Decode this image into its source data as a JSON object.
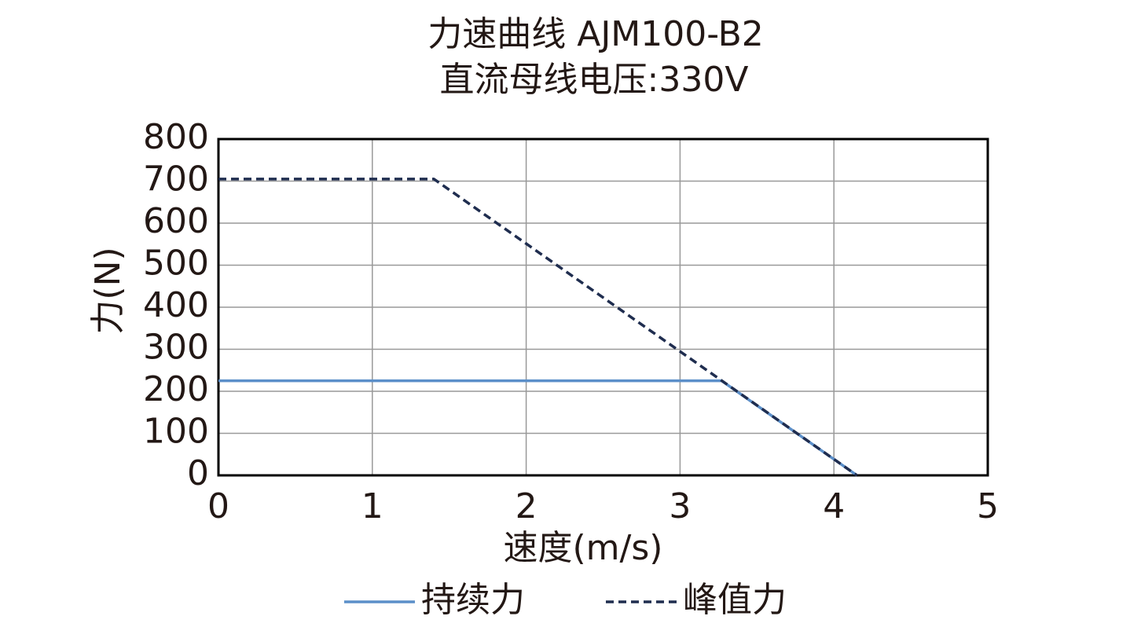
{
  "chart_data": {
    "type": "line",
    "title": "力速曲线 AJM100-B2",
    "subtitle": "直流母线电压:330V",
    "x_label": "速度(m/s)",
    "y_label": "力(N)",
    "xlim": [
      0,
      5
    ],
    "xticks": [
      0,
      1,
      2,
      3,
      4,
      5
    ],
    "ylim": [
      0,
      800
    ],
    "yticks": [
      0,
      100,
      200,
      300,
      400,
      500,
      600,
      700,
      800
    ],
    "grid": true,
    "legend": "bottom",
    "series": [
      {
        "name": "持续力",
        "color": "#5b8fc9",
        "dash": false,
        "x": [
          0,
          3.27,
          4.15
        ],
        "values": [
          225,
          225,
          0
        ]
      },
      {
        "name": "峰值力",
        "color": "#1f2d4f",
        "dash": true,
        "x": [
          0,
          1.4,
          4.15
        ],
        "values": [
          705,
          705,
          0
        ]
      }
    ]
  }
}
